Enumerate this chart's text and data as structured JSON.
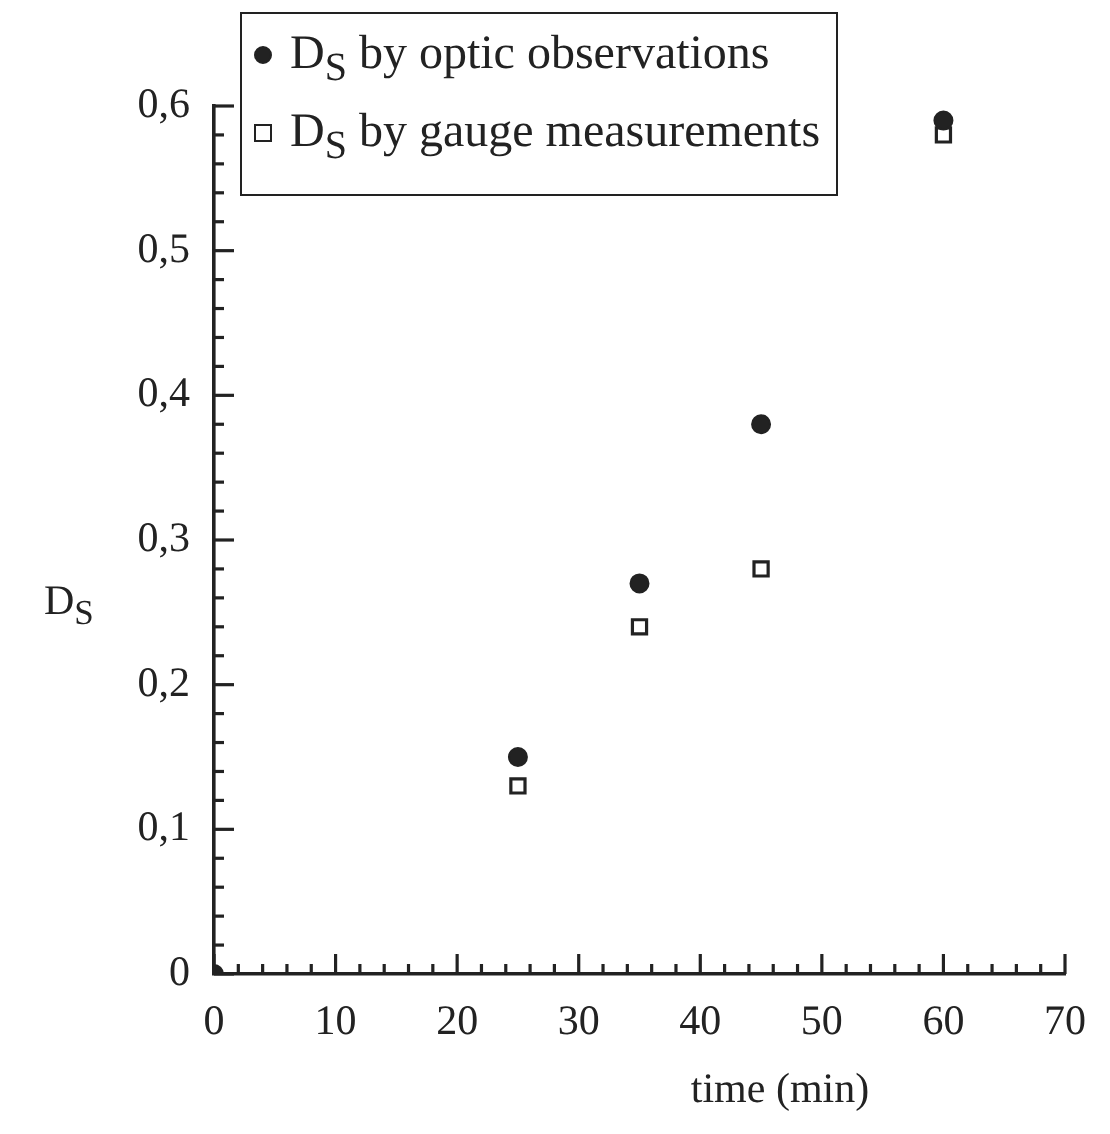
{
  "chart_data": {
    "type": "scatter",
    "xlabel": "time (min)",
    "ylabel": "D$_{S}$",
    "legend": "top",
    "series": [
      {
        "name": "D$_{S}$ by optic observations",
        "color": "#222222",
        "marker": "circle",
        "x": [
          0,
          25,
          35,
          45,
          60
        ],
        "values": [
          0,
          0.15,
          0.27,
          0.38,
          0.59
        ]
      },
      {
        "name": "D$_{S}$ by gauge measurements",
        "color": "#222222",
        "marker": "square",
        "x": [
          25,
          35,
          45,
          60
        ],
        "values": [
          0.13,
          0.24,
          0.28,
          0.58
        ]
      }
    ],
    "xlim": [
      0,
      70
    ],
    "xticks": [
      0,
      {
        "value": 2,
        "label": null
      },
      {
        "value": 4,
        "label": null
      },
      {
        "value": 6,
        "label": null
      },
      {
        "value": 8,
        "label": null
      },
      10,
      {
        "value": 12,
        "label": null
      },
      {
        "value": 14,
        "label": null
      },
      {
        "value": 16,
        "label": null
      },
      {
        "value": 18,
        "label": null
      },
      20,
      {
        "value": 22,
        "label": null
      },
      {
        "value": 24,
        "label": null
      },
      {
        "value": 26,
        "label": null
      },
      {
        "value": 28,
        "label": null
      },
      30,
      {
        "value": 32,
        "label": null
      },
      {
        "value": 34,
        "label": null
      },
      {
        "value": 36,
        "label": null
      },
      {
        "value": 38,
        "label": null
      },
      40,
      {
        "value": 42,
        "label": null
      },
      {
        "value": 44,
        "label": null
      },
      {
        "value": 46,
        "label": null
      },
      {
        "value": 48,
        "label": null
      },
      50,
      {
        "value": 52,
        "label": null
      },
      {
        "value": 54,
        "label": null
      },
      {
        "value": 56,
        "label": null
      },
      {
        "value": 58,
        "label": null
      },
      60,
      {
        "value": 62,
        "label": null
      },
      {
        "value": 64,
        "label": null
      },
      {
        "value": 66,
        "label": null
      },
      {
        "value": 68,
        "label": null
      },
      70
    ],
    "ylim": [
      0,
      0.6
    ],
    "yticks": [
      0,
      {
        "value": 0.02,
        "label": null
      },
      {
        "value": 0.04,
        "label": null
      },
      {
        "value": 0.06,
        "label": null
      },
      {
        "value": 0.08,
        "label": null
      },
      {
        "value": 0.1,
        "label": "0,1"
      },
      {
        "value": 0.12,
        "label": null
      },
      {
        "value": 0.14,
        "label": null
      },
      {
        "value": 0.16,
        "label": null
      },
      {
        "value": 0.18,
        "label": null
      },
      {
        "value": 0.2,
        "label": "0,2"
      },
      {
        "value": 0.22,
        "label": null
      },
      {
        "value": 0.24,
        "label": null
      },
      {
        "value": 0.26,
        "label": null
      },
      {
        "value": 0.28,
        "label": null
      },
      {
        "value": 0.3,
        "label": "0,3"
      },
      {
        "value": 0.32,
        "label": null
      },
      {
        "value": 0.34,
        "label": null
      },
      {
        "value": 0.36,
        "label": null
      },
      {
        "value": 0.38,
        "label": null
      },
      {
        "value": 0.4,
        "label": "0,4"
      },
      {
        "value": 0.42,
        "label": null
      },
      {
        "value": 0.44,
        "label": null
      },
      {
        "value": 0.46,
        "label": null
      },
      {
        "value": 0.48,
        "label": null
      },
      {
        "value": 0.5,
        "label": "0,5"
      },
      {
        "value": 0.52,
        "label": null
      },
      {
        "value": 0.54,
        "label": null
      },
      {
        "value": 0.56,
        "label": null
      },
      {
        "value": 0.58,
        "label": null
      },
      {
        "value": 0.6,
        "label": "0,6"
      }
    ],
    "grid": false
  }
}
